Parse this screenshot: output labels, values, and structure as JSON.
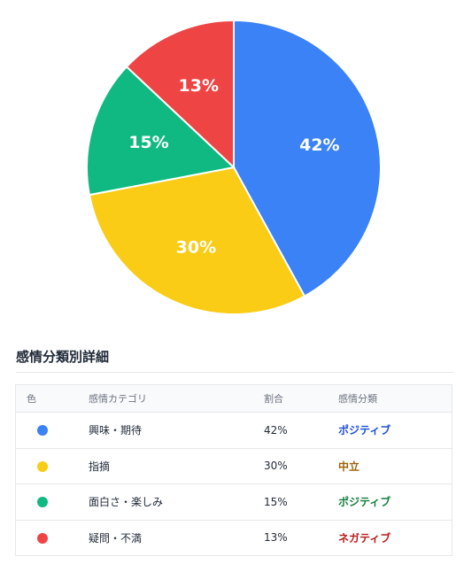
{
  "chart_data": {
    "type": "pie",
    "title": "",
    "slices": [
      {
        "label": "興味・期待",
        "value": 42,
        "display": "42%",
        "color": "#3b82f6"
      },
      {
        "label": "指摘",
        "value": 30,
        "display": "30%",
        "color": "#facc15"
      },
      {
        "label": "面白さ・楽しみ",
        "value": 15,
        "display": "15%",
        "color": "#10b981"
      },
      {
        "label": "疑問・不満",
        "value": 13,
        "display": "13%",
        "color": "#ef4444"
      }
    ],
    "start_angle_deg": 0,
    "direction": "clockwise"
  },
  "section": {
    "title": "感情分類別詳細"
  },
  "table": {
    "headers": {
      "color": "色",
      "category": "感情カテゴリ",
      "ratio": "割合",
      "sentiment": "感情分類"
    },
    "rows": [
      {
        "color": "#3b82f6",
        "category": "興味・期待",
        "ratio": "42%",
        "sentiment": "ポジティブ",
        "sentiment_color": "#1d4ed8"
      },
      {
        "color": "#facc15",
        "category": "指摘",
        "ratio": "30%",
        "sentiment": "中立",
        "sentiment_color": "#a16207"
      },
      {
        "color": "#10b981",
        "category": "面白さ・楽しみ",
        "ratio": "15%",
        "sentiment": "ポジティブ",
        "sentiment_color": "#15803d"
      },
      {
        "color": "#ef4444",
        "category": "疑問・不満",
        "ratio": "13%",
        "sentiment": "ネガティブ",
        "sentiment_color": "#b91c1c"
      }
    ]
  }
}
